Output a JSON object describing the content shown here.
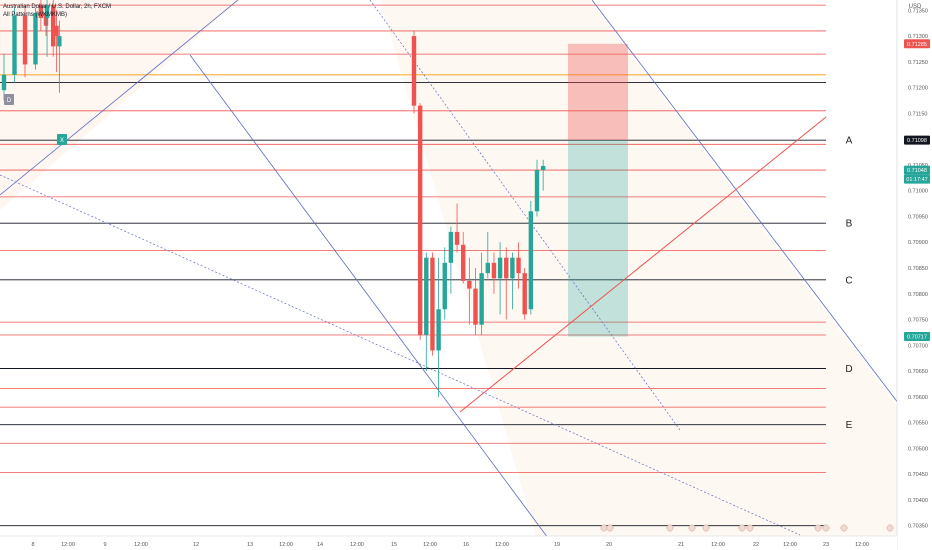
{
  "header": {
    "symbol_line": "Australian Dollar / U.S. Dollar, 2h, FXCM",
    "indicator_line": "All Patterns (WKMKMB)"
  },
  "chart_data": {
    "type": "candlestick",
    "symbol": "Australian Dollar / U.S. Dollar",
    "interval": "2h",
    "source": "FXCM",
    "currency": "USD",
    "ylim": [
      0.7033,
      0.7137
    ],
    "y_ticks": [
      0.7135,
      0.713,
      0.7125,
      0.712,
      0.7115,
      0.711,
      0.7105,
      0.71,
      0.7095,
      0.709,
      0.7085,
      0.708,
      0.7075,
      0.707,
      0.7065,
      0.706,
      0.7055,
      0.705,
      0.7045,
      0.704,
      0.7035
    ],
    "x_ticks": [
      "8",
      "12:00",
      "9",
      "12:00",
      "12",
      "13",
      "12:00",
      "14",
      "12:00",
      "15",
      "12:00",
      "16",
      "12:00",
      "19",
      "20",
      "21",
      "12:00",
      "22",
      "12:00",
      "23",
      "12:00"
    ],
    "price_tags": [
      {
        "value": "0.71285",
        "color": "#ef5350"
      },
      {
        "value": "0.71098",
        "color": "#131722"
      },
      {
        "value": "0.71048",
        "color": "#26a69a"
      },
      {
        "value": "01:17:47",
        "color": "#26a69a"
      },
      {
        "value": "0.70717",
        "color": "#26a69a"
      }
    ],
    "horizontal_levels": {
      "black": [
        0.7121,
        0.71098,
        0.70937,
        0.70827,
        0.70655,
        0.70546,
        0.7035
      ],
      "red": [
        0.7136,
        0.7131,
        0.71265,
        0.71155,
        0.7109,
        0.7104,
        0.70988,
        0.70884,
        0.70745,
        0.7072,
        0.70616,
        0.7058,
        0.7051,
        0.70453
      ],
      "orange": [
        0.71225
      ]
    },
    "wave_labels": [
      {
        "label": "A",
        "y": 0.71098
      },
      {
        "label": "B",
        "y": 0.70937
      },
      {
        "label": "C",
        "y": 0.70827
      },
      {
        "label": "D",
        "y": 0.70655
      },
      {
        "label": "E",
        "y": 0.70546
      }
    ],
    "position_box": {
      "entry": 0.71098,
      "target": 0.70717,
      "stop": 0.71285
    },
    "pattern_markers": [
      "D",
      "X"
    ],
    "colors": {
      "up": "#26a69a",
      "down": "#ef5350",
      "channel": "#5c6bc0"
    },
    "candles": [
      {
        "o": 0.71195,
        "h": 0.71265,
        "l": 0.71175,
        "c": 0.71225
      },
      {
        "o": 0.71225,
        "h": 0.71355,
        "l": 0.7121,
        "c": 0.7134
      },
      {
        "o": 0.7134,
        "h": 0.7136,
        "l": 0.7122,
        "c": 0.71245
      },
      {
        "o": 0.71245,
        "h": 0.71355,
        "l": 0.71235,
        "c": 0.71345
      },
      {
        "o": 0.71345,
        "h": 0.7136,
        "l": 0.713,
        "c": 0.7132
      },
      {
        "o": 0.7132,
        "h": 0.7135,
        "l": 0.7123,
        "c": 0.713
      },
      {
        "o": 0.7136,
        "h": 0.7138,
        "l": 0.7131,
        "c": 0.71335
      },
      {
        "o": 0.71335,
        "h": 0.7138,
        "l": 0.7126,
        "c": 0.7136
      },
      {
        "o": 0.7136,
        "h": 0.71375,
        "l": 0.7126,
        "c": 0.7128
      },
      {
        "o": 0.7128,
        "h": 0.7133,
        "l": 0.7119,
        "c": 0.713
      },
      {
        "o": 0.713,
        "h": 0.7131,
        "l": 0.7115,
        "c": 0.71165
      },
      {
        "o": 0.71165,
        "h": 0.7117,
        "l": 0.7071,
        "c": 0.7072
      },
      {
        "o": 0.7072,
        "h": 0.7088,
        "l": 0.7065,
        "c": 0.7087
      },
      {
        "o": 0.7087,
        "h": 0.7088,
        "l": 0.7068,
        "c": 0.7069
      },
      {
        "o": 0.7069,
        "h": 0.7087,
        "l": 0.706,
        "c": 0.7077
      },
      {
        "o": 0.7077,
        "h": 0.7089,
        "l": 0.7075,
        "c": 0.7086
      },
      {
        "o": 0.7086,
        "h": 0.7093,
        "l": 0.708,
        "c": 0.7092
      },
      {
        "o": 0.7092,
        "h": 0.70975,
        "l": 0.7088,
        "c": 0.70895
      },
      {
        "o": 0.70895,
        "h": 0.7092,
        "l": 0.7082,
        "c": 0.70825
      },
      {
        "o": 0.70825,
        "h": 0.7087,
        "l": 0.7074,
        "c": 0.7081
      },
      {
        "o": 0.7081,
        "h": 0.7085,
        "l": 0.7072,
        "c": 0.7074
      },
      {
        "o": 0.7074,
        "h": 0.7088,
        "l": 0.7072,
        "c": 0.7084
      },
      {
        "o": 0.7084,
        "h": 0.7092,
        "l": 0.7083,
        "c": 0.7086
      },
      {
        "o": 0.7086,
        "h": 0.7088,
        "l": 0.708,
        "c": 0.7083
      },
      {
        "o": 0.7083,
        "h": 0.709,
        "l": 0.7076,
        "c": 0.7087
      },
      {
        "o": 0.7087,
        "h": 0.7089,
        "l": 0.7075,
        "c": 0.7083
      },
      {
        "o": 0.7083,
        "h": 0.7088,
        "l": 0.7077,
        "c": 0.7087
      },
      {
        "o": 0.7087,
        "h": 0.709,
        "l": 0.7081,
        "c": 0.7084
      },
      {
        "o": 0.7084,
        "h": 0.7085,
        "l": 0.7075,
        "c": 0.7076
      },
      {
        "o": 0.7077,
        "h": 0.7098,
        "l": 0.7076,
        "c": 0.7096
      },
      {
        "o": 0.7096,
        "h": 0.7106,
        "l": 0.7095,
        "c": 0.7104
      },
      {
        "o": 0.7104,
        "h": 0.7106,
        "l": 0.71,
        "c": 0.71048
      }
    ]
  }
}
